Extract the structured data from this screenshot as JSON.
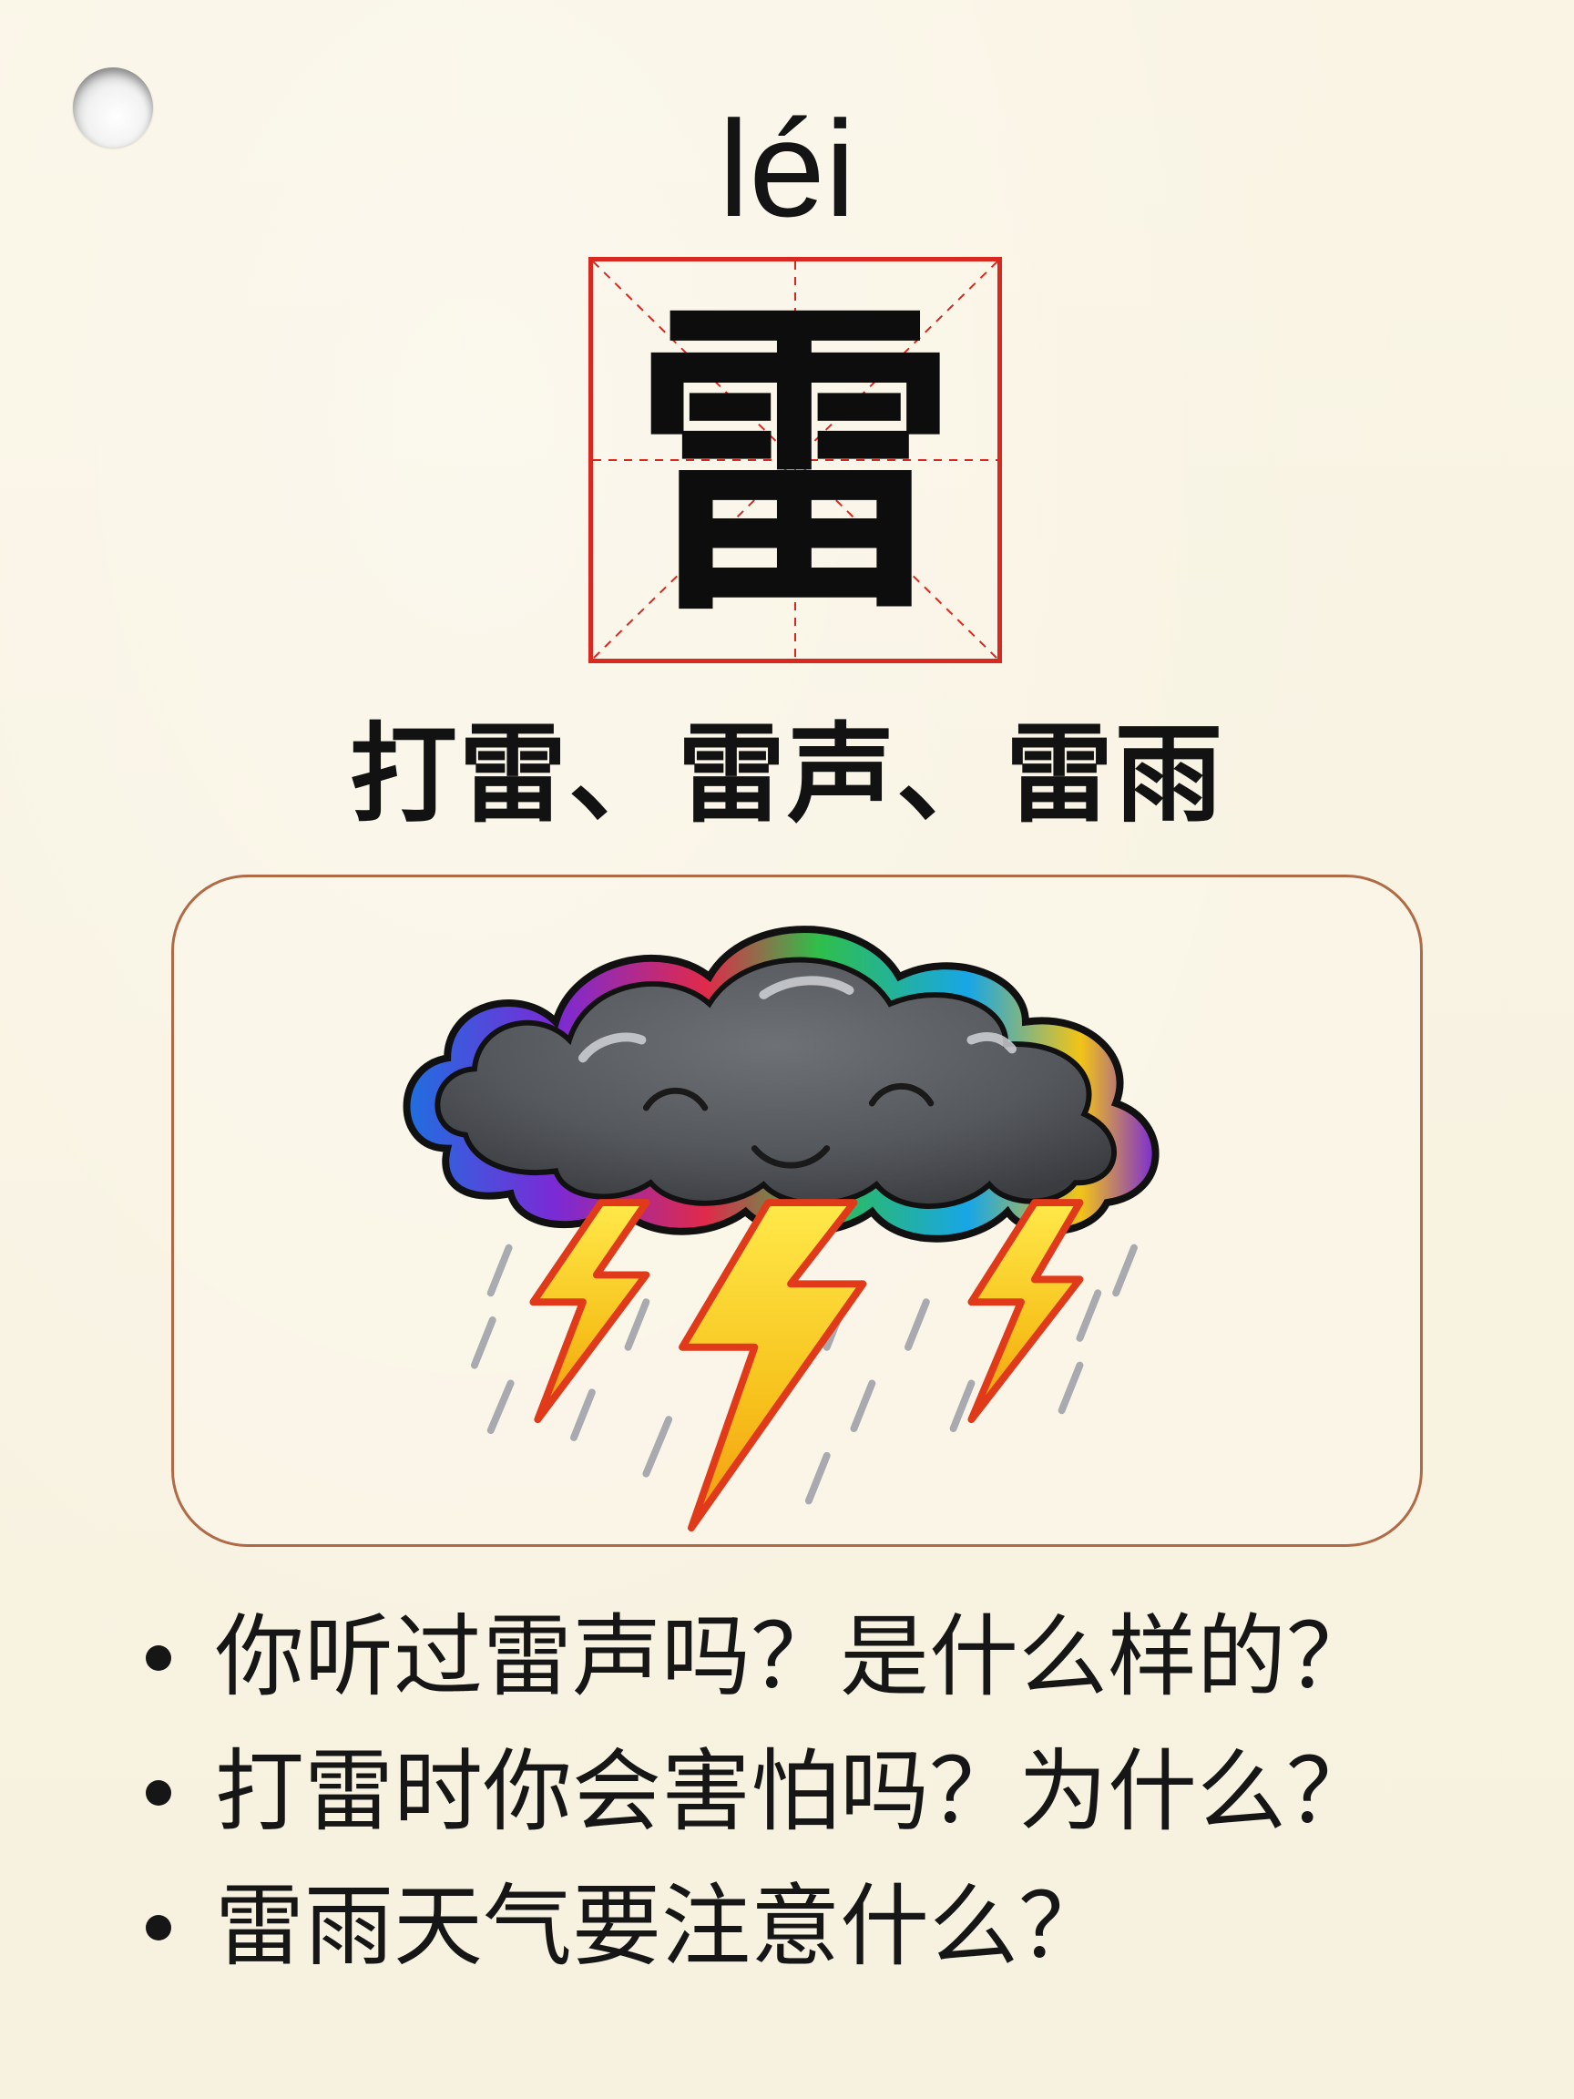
{
  "card": {
    "pinyin": "léi",
    "character": "雷",
    "words": "打雷、雷声、雷雨",
    "questions": [
      "你听过雷声吗？是什么样的？",
      "打雷时你会害怕吗？为什么？",
      "雷雨天气要注意什么？"
    ]
  },
  "colors": {
    "grid_border": "#d9281f",
    "frame_border": "#b06a45",
    "background": "#f8f3e2",
    "cloud": "#55585d",
    "lightning": "#f7c21c"
  },
  "icons": {
    "punch_hole": "punch-hole",
    "illustration": "thunder-cloud-icon"
  }
}
